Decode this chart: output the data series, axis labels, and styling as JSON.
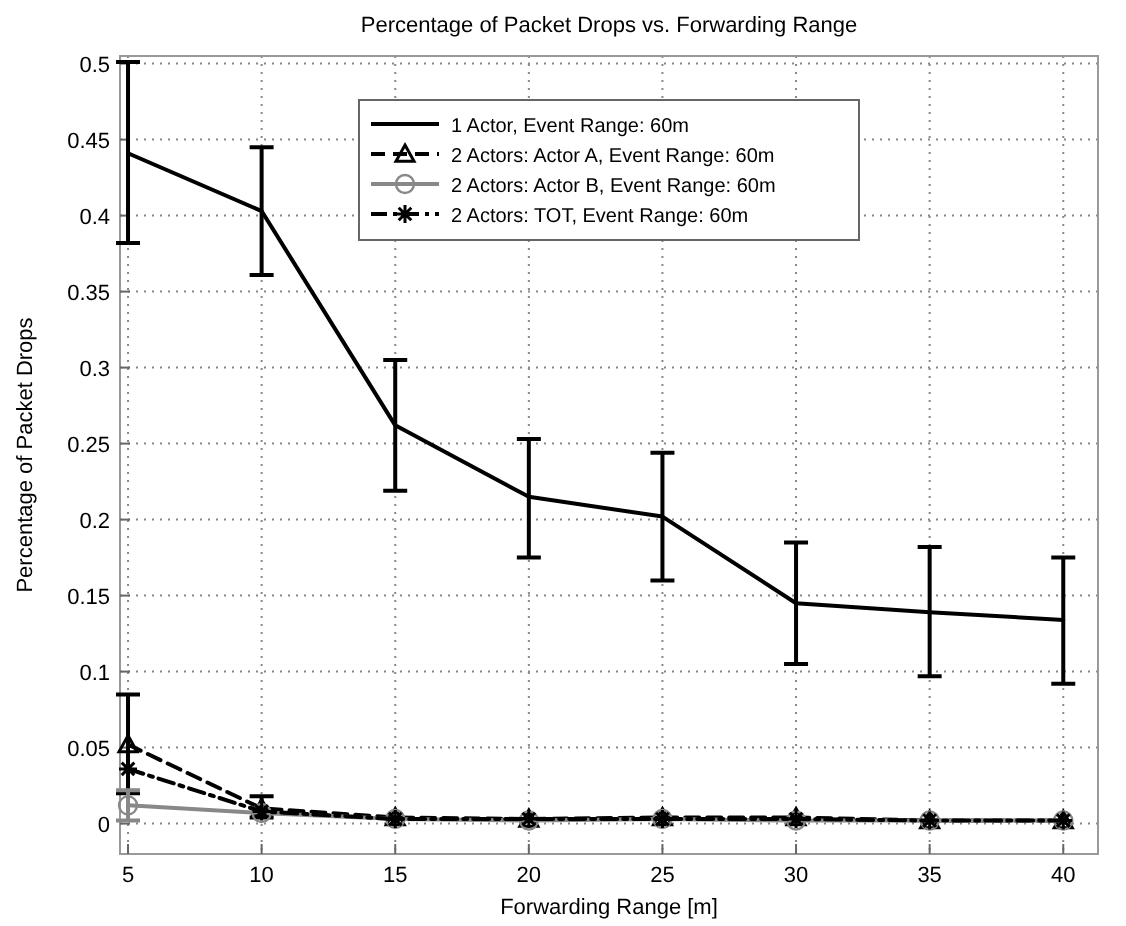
{
  "chart_data": {
    "type": "line",
    "title": "Percentage of Packet Drops vs. Forwarding Range",
    "xlabel": "Forwarding Range [m]",
    "ylabel": "Percentage of Packet Drops",
    "x": [
      5,
      10,
      15,
      20,
      25,
      30,
      35,
      40
    ],
    "xlim": [
      4.7,
      41.3
    ],
    "xticks": [
      5,
      10,
      15,
      20,
      25,
      30,
      35,
      40
    ],
    "ylim": [
      -0.02,
      0.505
    ],
    "yticks": [
      0,
      0.05,
      0.1,
      0.15,
      0.2,
      0.25,
      0.3,
      0.35,
      0.4,
      0.45,
      0.5
    ],
    "grid": true,
    "legend": "top",
    "series": [
      {
        "name": "1 Actor, Event Range: 60m",
        "color": "#000000",
        "marker": "none",
        "line_style": "solid",
        "values": [
          0.441,
          0.403,
          0.262,
          0.215,
          0.202,
          0.145,
          0.139,
          0.134
        ],
        "errors": [
          [
            0.382,
            0.501
          ],
          [
            0.361,
            0.445
          ],
          [
            0.219,
            0.305
          ],
          [
            0.175,
            0.253
          ],
          [
            0.16,
            0.244
          ],
          [
            0.105,
            0.185
          ],
          [
            0.097,
            0.182
          ],
          [
            0.092,
            0.175
          ]
        ]
      },
      {
        "name": "2 Actors: Actor A, Event Range: 60m",
        "color": "#000000",
        "marker": "triangle",
        "line_style": "dashed",
        "values": [
          0.052,
          0.01,
          0.004,
          0.003,
          0.004,
          0.004,
          0.002,
          0.002
        ],
        "errors": [
          [
            0.02,
            0.085
          ],
          [
            0.004,
            0.018
          ],
          null,
          null,
          null,
          null,
          null,
          null
        ]
      },
      {
        "name": "2 Actors: Actor B, Event Range: 60m",
        "color": "#888888",
        "marker": "circle",
        "line_style": "solid",
        "values": [
          0.012,
          0.007,
          0.003,
          0.002,
          0.003,
          0.002,
          0.002,
          0.002
        ],
        "errors": [
          [
            0.002,
            0.022
          ],
          null,
          null,
          null,
          null,
          null,
          null,
          null
        ]
      },
      {
        "name": "2 Actors: TOT, Event Range: 60m",
        "color": "#000000",
        "marker": "cross",
        "line_style": "dashdot",
        "values": [
          0.036,
          0.008,
          0.003,
          0.003,
          0.003,
          0.003,
          0.002,
          0.002
        ]
      }
    ]
  }
}
